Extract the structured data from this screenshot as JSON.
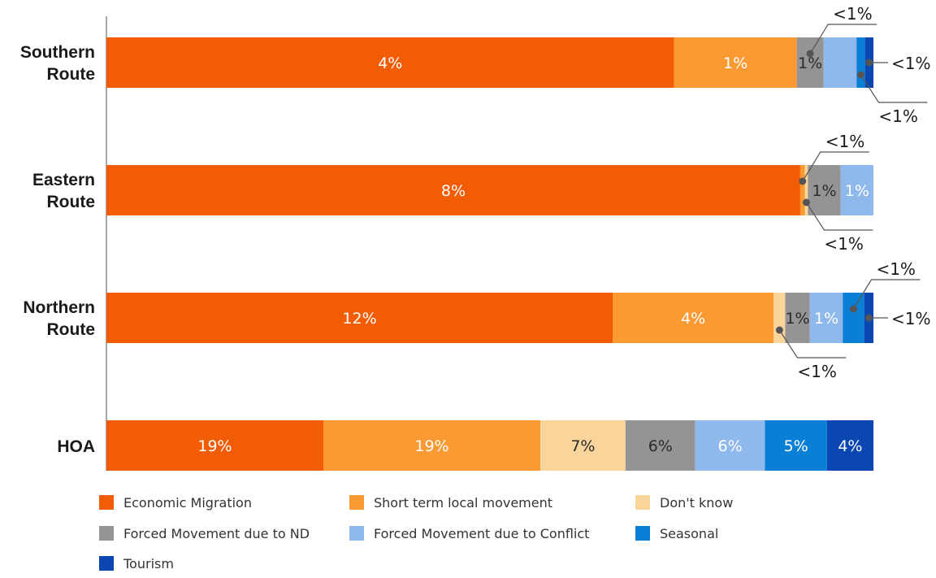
{
  "chart_data": {
    "type": "bar",
    "orientation": "horizontal",
    "stacked": true,
    "categories": [
      "Southern Route",
      "Eastern Route",
      "Northern Route",
      "HOA"
    ],
    "category_lines": [
      [
        "Southern",
        "Route"
      ],
      [
        "Eastern",
        "Route"
      ],
      [
        "Northern",
        "Route"
      ],
      [
        "HOA"
      ]
    ],
    "series": [
      {
        "name": "Economic Migration",
        "color": "#f25c05",
        "values": [
          74,
          91,
          66,
          28
        ]
      },
      {
        "name": "Short term local movement",
        "color": "#fb9a33",
        "values": [
          16,
          0.6,
          21,
          28
        ]
      },
      {
        "name": "Don't know",
        "color": "#f9d49b",
        "values": [
          0,
          0.4,
          1.5,
          11
        ]
      },
      {
        "name": "Forced Movement due to ND",
        "color": "#949494",
        "values": [
          3.5,
          4.3,
          3.2,
          9
        ]
      },
      {
        "name": "Forced Movement due to Conflict",
        "color": "#8fb8ec",
        "values": [
          4.3,
          4.3,
          4.3,
          9
        ]
      },
      {
        "name": "Seasonal",
        "color": "#0a7fd6",
        "values": [
          1.1,
          0,
          2.8,
          8
        ]
      },
      {
        "name": "Tourism",
        "color": "#0a47b3",
        "values": [
          1.1,
          0,
          1.2,
          6
        ]
      }
    ],
    "segment_labels": [
      [
        "4%",
        "1%",
        "",
        "1%",
        "",
        "",
        ""
      ],
      [
        "8%",
        "",
        "",
        "1%",
        "1%",
        "",
        ""
      ],
      [
        "12%",
        "4%",
        "",
        "1%",
        "1%",
        "",
        ""
      ],
      [
        "19%",
        "19%",
        "7%",
        "6%",
        "6%",
        "5%",
        "4%"
      ]
    ],
    "annotations": [
      {
        "row": 0,
        "series": 3,
        "text": "<1%",
        "side": "top"
      },
      {
        "row": 0,
        "series": 6,
        "text": "<1%",
        "side": "right"
      },
      {
        "row": 0,
        "series": 5,
        "text": "<1%",
        "side": "bottom"
      },
      {
        "row": 1,
        "series": 1,
        "text": "<1%",
        "side": "top"
      },
      {
        "row": 1,
        "series": 2,
        "text": "<1%",
        "side": "bottom"
      },
      {
        "row": 2,
        "series": 5,
        "text": "<1%",
        "side": "top"
      },
      {
        "row": 2,
        "series": 6,
        "text": "<1%",
        "side": "right"
      },
      {
        "row": 2,
        "series": 2,
        "text": "<1%",
        "side": "bottom"
      }
    ],
    "legend_position": "bottom",
    "grid": false
  }
}
